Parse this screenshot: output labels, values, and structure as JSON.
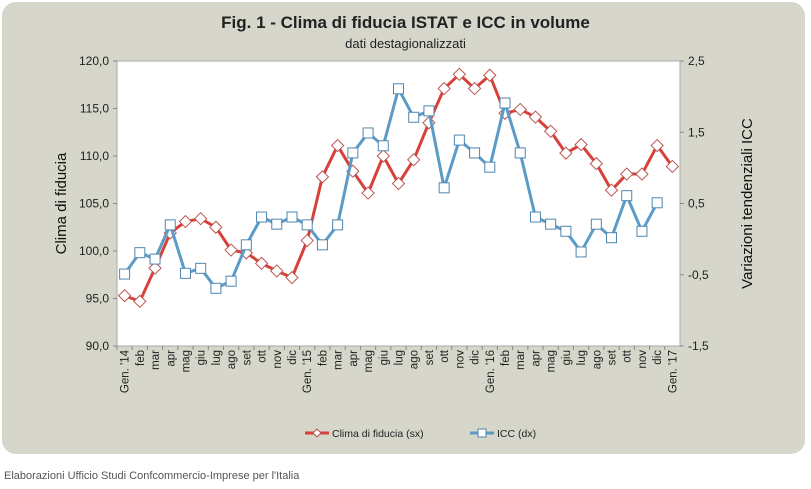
{
  "chart_data": {
    "type": "line",
    "title": "Fig. 1 - Clima di fiducia ISTAT e ICC in volume",
    "subtitle": "dati destagionalizzati",
    "ylabel": "Clima di fiducia",
    "y2label": "Variazioni tendenziali ICC",
    "ylim": [
      90,
      120
    ],
    "y2lim": [
      -1.5,
      2.5
    ],
    "yticks": [
      "90,0",
      "95,0",
      "100,0",
      "105,0",
      "110,0",
      "115,0",
      "120,0"
    ],
    "y2ticks": [
      "-1,5",
      "-0,5",
      "0,5",
      "1,5",
      "2,5"
    ],
    "categories": [
      "Gen. '14",
      "feb",
      "mar",
      "apr",
      "mag",
      "giu",
      "lug",
      "ago",
      "set",
      "ott",
      "nov",
      "dic",
      "Gen. '15",
      "feb",
      "mar",
      "apr",
      "mag",
      "giu",
      "lug",
      "ago",
      "set",
      "ott",
      "nov",
      "dic",
      "Gen. '16",
      "feb",
      "mar",
      "apr",
      "mag",
      "giu",
      "lug",
      "ago",
      "set",
      "ott",
      "nov",
      "dic",
      "Gen. '17"
    ],
    "series": [
      {
        "name": "Clima di fiducia (sx)",
        "axis": "left",
        "color": "#d9403a",
        "values": [
          95.3,
          94.7,
          98.2,
          101.9,
          103.1,
          103.4,
          102.5,
          100.1,
          99.8,
          98.7,
          97.9,
          97.2,
          101.1,
          107.8,
          111.1,
          108.4,
          106.1,
          110.0,
          107.1,
          109.6,
          113.5,
          117.1,
          118.6,
          117.1,
          118.5,
          114.5,
          114.9,
          114.1,
          112.6,
          110.3,
          111.2,
          109.2,
          106.4,
          108.1,
          108.1,
          111.1,
          108.9
        ]
      },
      {
        "name": "ICC (dx)",
        "axis": "right",
        "color": "#5b9bc8",
        "values": [
          -0.49,
          -0.19,
          -0.28,
          0.2,
          -0.48,
          -0.41,
          -0.69,
          -0.59,
          -0.08,
          0.31,
          0.21,
          0.31,
          0.2,
          -0.08,
          0.2,
          1.21,
          1.49,
          1.31,
          2.11,
          1.71,
          1.8,
          0.72,
          1.39,
          1.21,
          1.01,
          1.91,
          1.21,
          0.31,
          0.21,
          0.11,
          -0.18,
          0.21,
          0.02,
          0.61,
          0.11,
          0.51,
          null
        ]
      }
    ],
    "legend_position": "bottom",
    "grid": false
  },
  "footer": "Elaborazioni Ufficio Studi Confcommercio-Imprese per l'Italia"
}
